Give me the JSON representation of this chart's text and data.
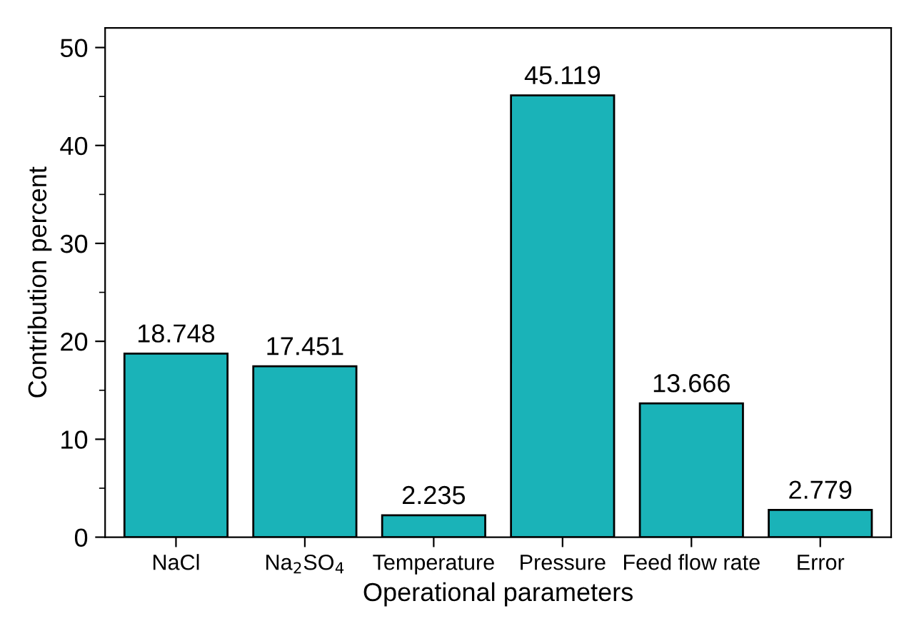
{
  "chart_data": {
    "type": "bar",
    "xlabel": "Operational parameters",
    "ylabel": "Contribution percent",
    "categories": [
      "NaCl",
      "Na$_{2}$SO$_{4}$",
      "Temperature",
      "Pressure",
      "Feed flow rate",
      "Error"
    ],
    "values": [
      18.748,
      17.451,
      2.235,
      45.119,
      13.666,
      2.779
    ],
    "color": "#1ab3b8",
    "ylim": [
      0,
      52
    ],
    "yticks": [
      0,
      10,
      20,
      30,
      40,
      50
    ],
    "data_labels": true,
    "grid": false
  }
}
